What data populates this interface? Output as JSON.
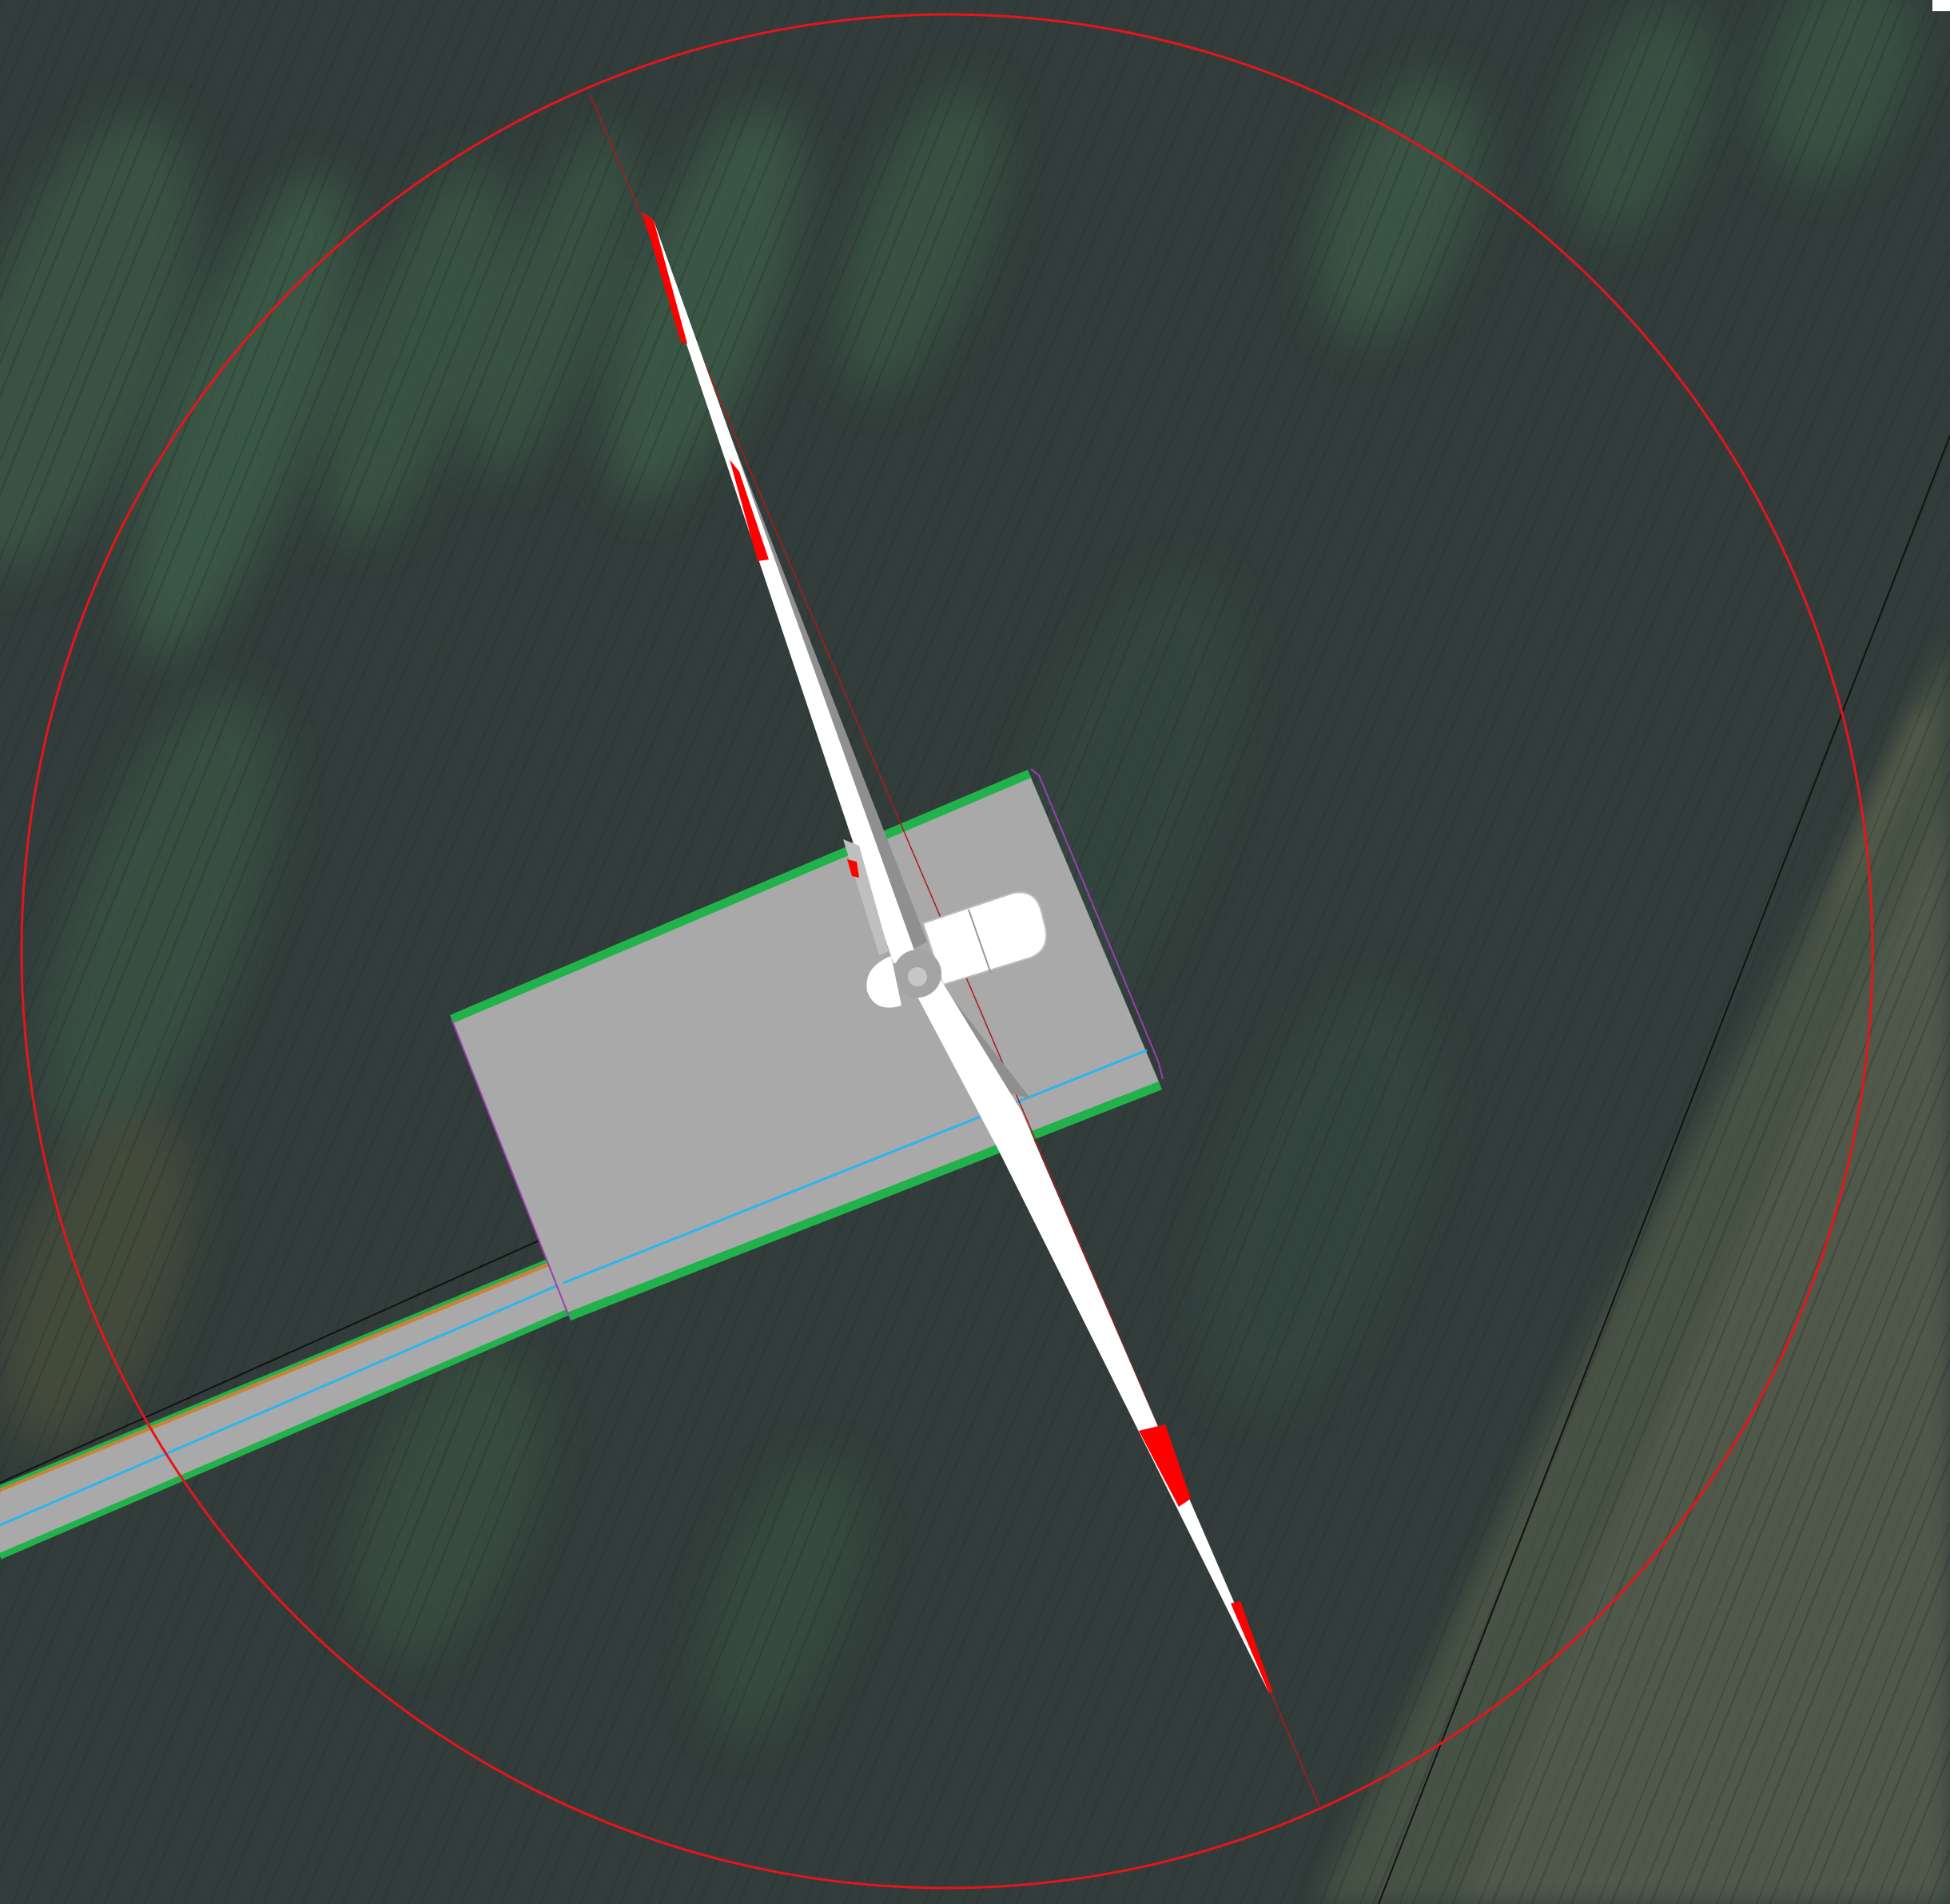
{
  "map": {
    "view": "aerial-photo",
    "layers": [
      {
        "name": "aerial-imagery",
        "kind": "raster"
      },
      {
        "name": "rotor-sweep-circle",
        "kind": "vector",
        "color": "#e8141a"
      },
      {
        "name": "wind-turbine",
        "kind": "symbol",
        "blade_colors": [
          "#ffffff",
          "#ff0000"
        ]
      },
      {
        "name": "crane-pad",
        "kind": "polygon",
        "fill": "#a9a9a9",
        "edge_color": "#22b24c"
      },
      {
        "name": "access-road",
        "kind": "polygon",
        "fill": "#a9a9a9",
        "edge_color": "#22b24c",
        "centerline_color": "#29b6f0"
      },
      {
        "name": "parcel-boundaries",
        "kind": "vector",
        "color": "#111111"
      }
    ],
    "colors": {
      "field": "#323d3b",
      "crop-rows": "#3a5a46",
      "gravel": "#a9a9a9",
      "green-edge": "#22b24c",
      "blue-centerline": "#29b6f0",
      "orange-edge": "#c9823a",
      "purple-outline": "#9a3fb0",
      "warning-red": "#ff0000"
    }
  }
}
